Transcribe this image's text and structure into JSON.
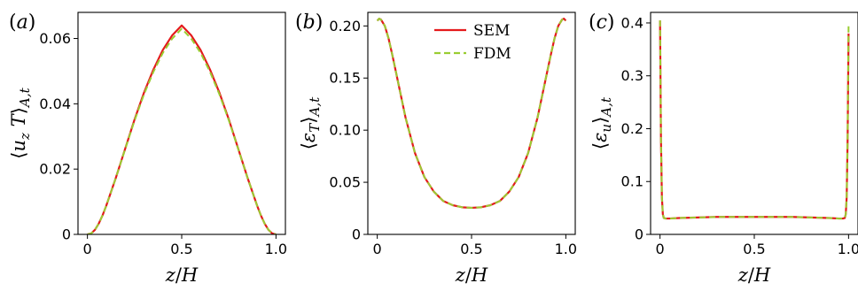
{
  "chart_data": [
    {
      "panel": "(a)",
      "type": "line",
      "xlabel": "z/H",
      "ylabel": "⟨u_z T⟩_{A,t}",
      "xlim": [
        -0.05,
        1.05
      ],
      "ylim": [
        0,
        0.068
      ],
      "xticks": [
        0,
        0.5,
        1.0
      ],
      "xtick_labels": [
        "0",
        "0.5",
        "1.0"
      ],
      "yticks": [
        0,
        0.02,
        0.04,
        0.06
      ],
      "ytick_labels": [
        "0",
        "0.02",
        "0.04",
        "0.06"
      ],
      "grid": false,
      "series": [
        {
          "name": "SEM",
          "color": "#e41a1c",
          "dash": "solid",
          "x": [
            0,
            0.02,
            0.04,
            0.06,
            0.08,
            0.1,
            0.15,
            0.2,
            0.25,
            0.3,
            0.35,
            0.4,
            0.45,
            0.5,
            0.55,
            0.6,
            0.65,
            0.7,
            0.75,
            0.8,
            0.85,
            0.9,
            0.92,
            0.94,
            0.96,
            0.98,
            1.0
          ],
          "y": [
            0,
            0.0003,
            0.0014,
            0.0033,
            0.0058,
            0.0088,
            0.0172,
            0.0262,
            0.0352,
            0.0434,
            0.0505,
            0.0565,
            0.061,
            0.064,
            0.061,
            0.0565,
            0.0505,
            0.0434,
            0.0352,
            0.0262,
            0.0172,
            0.0088,
            0.0058,
            0.0033,
            0.0014,
            0.0003,
            0
          ]
        },
        {
          "name": "FDM",
          "color": "#9acd32",
          "dash": "dashed",
          "x": [
            0,
            0.02,
            0.04,
            0.06,
            0.08,
            0.1,
            0.15,
            0.2,
            0.25,
            0.3,
            0.35,
            0.4,
            0.45,
            0.5,
            0.55,
            0.6,
            0.65,
            0.7,
            0.75,
            0.8,
            0.85,
            0.9,
            0.92,
            0.94,
            0.96,
            0.98,
            1.0
          ],
          "y": [
            0,
            0.0003,
            0.0014,
            0.0033,
            0.0058,
            0.0088,
            0.0172,
            0.0261,
            0.0349,
            0.0429,
            0.0498,
            0.0556,
            0.06,
            0.063,
            0.06,
            0.0556,
            0.0498,
            0.0429,
            0.0349,
            0.0261,
            0.0172,
            0.0088,
            0.0058,
            0.0033,
            0.0014,
            0.0003,
            0
          ]
        }
      ]
    },
    {
      "panel": "(b)",
      "type": "line",
      "xlabel": "z/H",
      "ylabel": "⟨ε_T⟩_{A,t}",
      "xlim": [
        -0.05,
        1.05
      ],
      "ylim": [
        0,
        0.213
      ],
      "xticks": [
        0,
        0.5,
        1.0
      ],
      "xtick_labels": [
        "0",
        "0.5",
        "1.0"
      ],
      "yticks": [
        0,
        0.05,
        0.1,
        0.15,
        0.2
      ],
      "ytick_labels": [
        "0",
        "0.05",
        "0.10",
        "0.15",
        "0.20"
      ],
      "grid": false,
      "legend": {
        "position": "top-right",
        "entries": [
          "SEM",
          "FDM"
        ]
      },
      "series": [
        {
          "name": "SEM",
          "color": "#e41a1c",
          "dash": "solid",
          "x": [
            0,
            0.01,
            0.02,
            0.04,
            0.06,
            0.08,
            0.1,
            0.15,
            0.2,
            0.25,
            0.3,
            0.35,
            0.4,
            0.45,
            0.5,
            0.55,
            0.6,
            0.65,
            0.7,
            0.75,
            0.8,
            0.85,
            0.9,
            0.92,
            0.94,
            0.96,
            0.98,
            0.99,
            1.0
          ],
          "y": [
            0.205,
            0.207,
            0.206,
            0.2,
            0.188,
            0.172,
            0.155,
            0.112,
            0.078,
            0.055,
            0.041,
            0.032,
            0.028,
            0.026,
            0.0255,
            0.026,
            0.028,
            0.032,
            0.041,
            0.055,
            0.078,
            0.112,
            0.155,
            0.172,
            0.188,
            0.2,
            0.206,
            0.207,
            0.205
          ]
        },
        {
          "name": "FDM",
          "color": "#9acd32",
          "dash": "dashed",
          "x": [
            0,
            0.01,
            0.02,
            0.04,
            0.06,
            0.08,
            0.1,
            0.15,
            0.2,
            0.25,
            0.3,
            0.35,
            0.4,
            0.45,
            0.5,
            0.55,
            0.6,
            0.65,
            0.7,
            0.75,
            0.8,
            0.85,
            0.9,
            0.92,
            0.94,
            0.96,
            0.98,
            0.99,
            1.0
          ],
          "y": [
            0.205,
            0.207,
            0.206,
            0.2,
            0.188,
            0.172,
            0.155,
            0.112,
            0.078,
            0.055,
            0.041,
            0.032,
            0.028,
            0.026,
            0.0255,
            0.026,
            0.028,
            0.032,
            0.041,
            0.055,
            0.078,
            0.112,
            0.155,
            0.172,
            0.188,
            0.2,
            0.206,
            0.207,
            0.205
          ]
        }
      ]
    },
    {
      "panel": "(c)",
      "type": "line",
      "xlabel": "z/H",
      "ylabel": "⟨ε_u⟩_{A,t}",
      "xlim": [
        -0.05,
        1.05
      ],
      "ylim": [
        0,
        0.42
      ],
      "xticks": [
        0,
        0.5,
        1.0
      ],
      "xtick_labels": [
        "0",
        "0.5",
        "1.0"
      ],
      "yticks": [
        0,
        0.1,
        0.2,
        0.3,
        0.4
      ],
      "ytick_labels": [
        "0",
        "0.1",
        "0.2",
        "0.3",
        "0.4"
      ],
      "grid": false,
      "series": [
        {
          "name": "SEM",
          "color": "#e41a1c",
          "dash": "solid",
          "x": [
            0,
            0.002,
            0.005,
            0.01,
            0.015,
            0.02,
            0.03,
            0.05,
            0.1,
            0.2,
            0.3,
            0.4,
            0.5,
            0.6,
            0.7,
            0.8,
            0.9,
            0.95,
            0.97,
            0.98,
            0.985,
            0.99,
            0.995,
            0.998,
            1.0
          ],
          "y": [
            0.405,
            0.32,
            0.18,
            0.07,
            0.038,
            0.031,
            0.03,
            0.03,
            0.031,
            0.032,
            0.033,
            0.033,
            0.033,
            0.033,
            0.033,
            0.032,
            0.031,
            0.03,
            0.03,
            0.031,
            0.038,
            0.07,
            0.18,
            0.3,
            0.38
          ]
        },
        {
          "name": "FDM",
          "color": "#9acd32",
          "dash": "dashed",
          "x": [
            0,
            0.002,
            0.005,
            0.01,
            0.015,
            0.02,
            0.03,
            0.05,
            0.1,
            0.2,
            0.3,
            0.4,
            0.5,
            0.6,
            0.7,
            0.8,
            0.9,
            0.95,
            0.97,
            0.98,
            0.985,
            0.99,
            0.995,
            0.998,
            1.0
          ],
          "y": [
            0.405,
            0.32,
            0.18,
            0.07,
            0.038,
            0.031,
            0.03,
            0.03,
            0.031,
            0.032,
            0.033,
            0.033,
            0.033,
            0.033,
            0.033,
            0.032,
            0.031,
            0.03,
            0.03,
            0.031,
            0.038,
            0.07,
            0.18,
            0.31,
            0.395
          ]
        }
      ]
    }
  ]
}
